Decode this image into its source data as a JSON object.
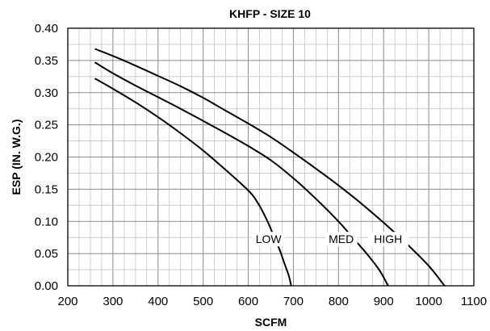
{
  "chart_data": {
    "type": "line",
    "title": "KHFP - SIZE 10",
    "xlabel": "SCFM",
    "ylabel": "ESP (IN. W.G.)",
    "xlim": [
      200,
      1100
    ],
    "ylim": [
      0,
      0.4
    ],
    "x_ticks": [
      "200",
      "300",
      "400",
      "500",
      "600",
      "700",
      "800",
      "900",
      "1000",
      "1100"
    ],
    "y_ticks": [
      "0.00",
      "0.05",
      "0.10",
      "0.15",
      "0.20",
      "0.25",
      "0.30",
      "0.35",
      "0.40"
    ],
    "grid": true,
    "series": [
      {
        "name": "LOW",
        "x": [
          260,
          300,
          350,
          400,
          450,
          500,
          550,
          600,
          620,
          640,
          655,
          670,
          680,
          690,
          695
        ],
        "y": [
          0.322,
          0.306,
          0.285,
          0.262,
          0.237,
          0.21,
          0.18,
          0.148,
          0.13,
          0.104,
          0.08,
          0.055,
          0.035,
          0.015,
          0.0
        ]
      },
      {
        "name": "MED",
        "x": [
          260,
          300,
          350,
          400,
          450,
          500,
          550,
          600,
          650,
          700,
          750,
          800,
          830,
          860,
          890,
          910
        ],
        "y": [
          0.347,
          0.33,
          0.311,
          0.293,
          0.275,
          0.256,
          0.237,
          0.217,
          0.195,
          0.167,
          0.135,
          0.1,
          0.076,
          0.052,
          0.025,
          0.0
        ]
      },
      {
        "name": "HIGH",
        "x": [
          260,
          300,
          350,
          400,
          450,
          500,
          550,
          600,
          650,
          700,
          750,
          800,
          850,
          900,
          950,
          1000,
          1035
        ],
        "y": [
          0.368,
          0.357,
          0.342,
          0.326,
          0.31,
          0.292,
          0.272,
          0.252,
          0.231,
          0.207,
          0.182,
          0.156,
          0.128,
          0.098,
          0.066,
          0.031,
          0.0
        ]
      }
    ],
    "curve_labels": [
      {
        "series": "LOW",
        "text": "LOW"
      },
      {
        "series": "MED",
        "text": "MED"
      },
      {
        "series": "HIGH",
        "text": "HIGH"
      }
    ]
  }
}
